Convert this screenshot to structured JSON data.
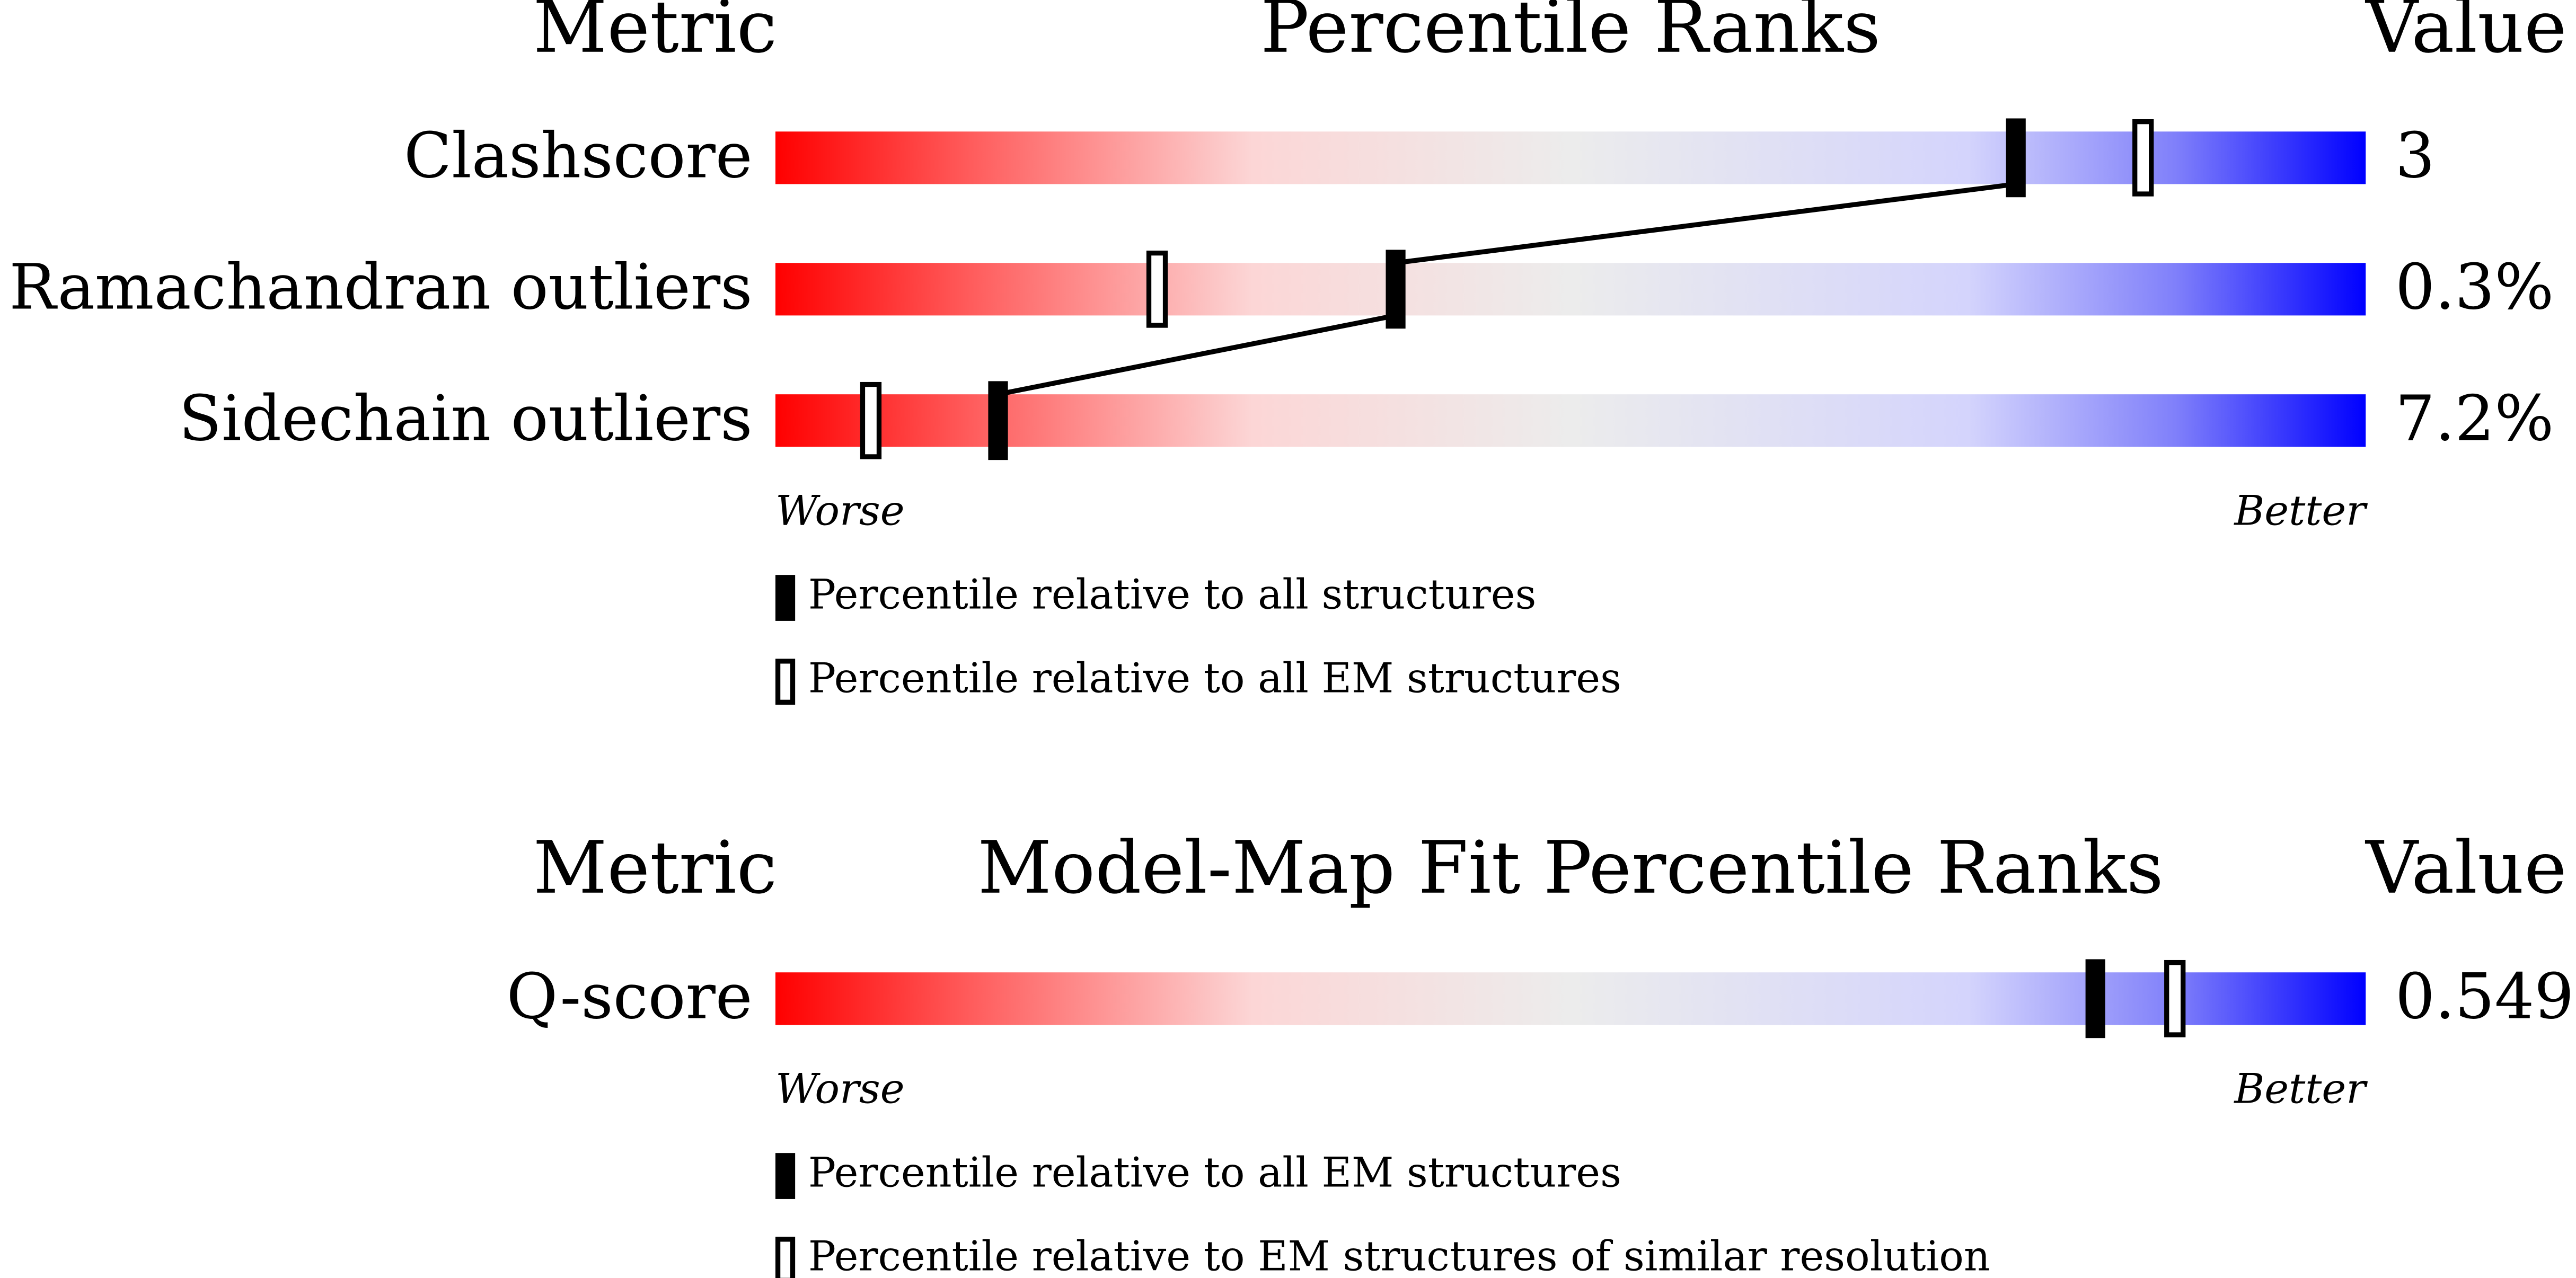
{
  "chart_data": [
    {
      "type": "slider",
      "headers": {
        "metric": "Metric",
        "title": "Percentile Ranks",
        "value": "Value"
      },
      "xlim": [
        0,
        100
      ],
      "metrics": [
        {
          "name": "Clashscore",
          "value": "3",
          "percentiles": [
            78,
            86
          ]
        },
        {
          "name": "Ramachandran outliers",
          "value": "0.3%",
          "percentiles": [
            39,
            24
          ]
        },
        {
          "name": "Sidechain outliers",
          "value": "7.2%",
          "percentiles": [
            14,
            6
          ]
        }
      ],
      "worse": "Worse",
      "better": "Better",
      "legend": [
        "Percentile relative to all structures",
        "Percentile relative to all EM structures"
      ]
    },
    {
      "type": "slider",
      "headers": {
        "metric": "Metric",
        "title": "Model-Map Fit Percentile Ranks",
        "value": "Value"
      },
      "xlim": [
        0,
        100
      ],
      "metrics": [
        {
          "name": "Q-score",
          "value": "0.549",
          "percentiles": [
            83,
            88
          ]
        }
      ],
      "worse": "Worse",
      "better": "Better",
      "legend": [
        "Percentile relative to all EM structures",
        "Percentile relative to EM structures of similar resolution"
      ]
    }
  ]
}
